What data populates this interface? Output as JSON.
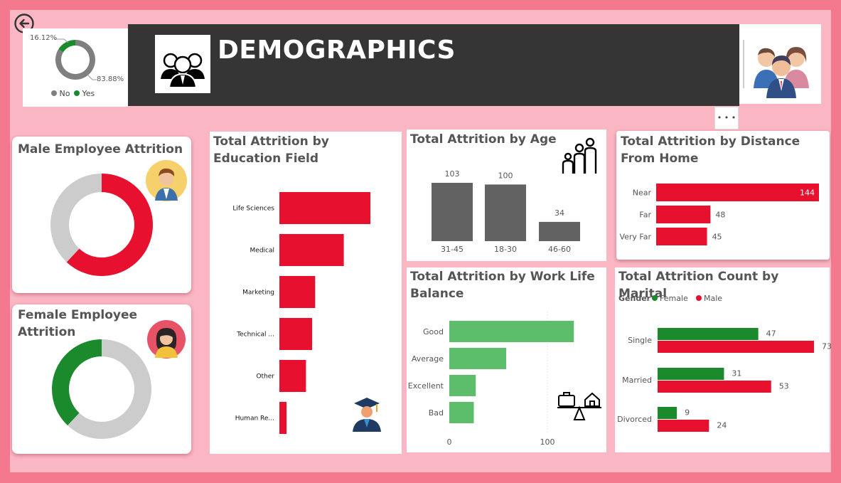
{
  "colors": {
    "red": "#e8102f",
    "green": "#1b8a2c",
    "light_green": "#5cbd6a",
    "gray": "#626262",
    "light_gray": "#cccccc",
    "header_bg": "#353535",
    "frame": "#f4798e",
    "canvas": "#fbb6c3"
  },
  "icons": {
    "back": "back-arrow-icon",
    "header": "people-group-icon",
    "team": "team-avatars-icon",
    "male": "male-avatar-icon",
    "female": "female-avatar-icon",
    "graduate": "graduate-icon",
    "family": "family-icon",
    "balance": "work-life-balance-icon"
  },
  "header": {
    "title": "DEMOGRAPHICS",
    "more_label": "• • •"
  },
  "attrition_donut": {
    "no_pct_label": "83.88%",
    "yes_pct_label": "16.12%",
    "legend": [
      "No",
      "Yes"
    ]
  },
  "male_card": {
    "title": "Male Employee Attrition"
  },
  "female_card": {
    "title": "Female Employee Attrition"
  },
  "education_card": {
    "title": "Total Attrition by Education Field"
  },
  "age_card": {
    "title": "Total Attrition by Age"
  },
  "distance_card": {
    "title": "Total Attrition by Distance From Home"
  },
  "wlb_card": {
    "title": "Total Attrition by Work Life Balance"
  },
  "marital_card": {
    "title": "Total Attrition Count by Marital",
    "legend_title": "Gender"
  },
  "chart_data": [
    {
      "id": "overall",
      "type": "pie",
      "donut": true,
      "labels": [
        "No",
        "Yes"
      ],
      "values": [
        83.88,
        16.12
      ],
      "colors": [
        "#7f7f7f",
        "#1b8a2c"
      ]
    },
    {
      "id": "male",
      "type": "pie",
      "donut": true,
      "values": [
        62,
        38
      ],
      "colors": [
        "#e8102f",
        "#cccccc"
      ]
    },
    {
      "id": "female",
      "type": "pie",
      "donut": true,
      "values": [
        62,
        38
      ],
      "colors": [
        "#cccccc",
        "#1b8a2c"
      ]
    },
    {
      "id": "education",
      "type": "bar",
      "orientation": "horizontal",
      "categories": [
        "Life Sciences",
        "Medical",
        "Marketing",
        "Technical ...",
        "Other",
        "Human Re..."
      ],
      "values": [
        89,
        63,
        35,
        32,
        26,
        7
      ]
    },
    {
      "id": "age",
      "type": "bar",
      "orientation": "vertical",
      "categories": [
        "31-45",
        "18-30",
        "46-60"
      ],
      "values": [
        103,
        100,
        34
      ]
    },
    {
      "id": "distance",
      "type": "bar",
      "orientation": "horizontal",
      "categories": [
        "Near",
        "Far",
        "Very Far"
      ],
      "values": [
        144,
        48,
        45
      ]
    },
    {
      "id": "worklife",
      "type": "bar",
      "orientation": "horizontal",
      "categories": [
        "Good",
        "Average",
        "Excellent",
        "Bad"
      ],
      "values": [
        127,
        58,
        27,
        25
      ],
      "x_ticks": [
        "0",
        "100"
      ]
    },
    {
      "id": "marital",
      "type": "bar",
      "orientation": "horizontal",
      "categories": [
        "Single",
        "Married",
        "Divorced"
      ],
      "series": [
        {
          "name": "Female",
          "values": [
            47,
            31,
            9
          ]
        },
        {
          "name": "Male",
          "values": [
            73,
            53,
            24
          ]
        }
      ]
    }
  ]
}
